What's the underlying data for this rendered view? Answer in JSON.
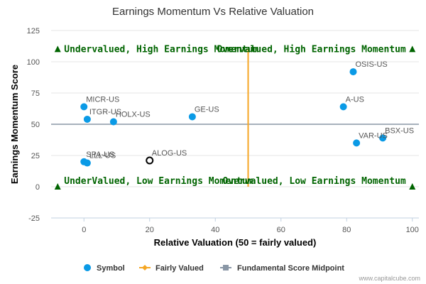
{
  "chart_data": {
    "type": "scatter",
    "title": "Earnings Momentum Vs Relative Valuation",
    "xlabel": "Relative Valuation (50 = fairly valued)",
    "ylabel": "Earnings Momentum Score",
    "xlim": [
      -10,
      102
    ],
    "ylim": [
      -25,
      125
    ],
    "xticks": [
      0,
      20,
      40,
      60,
      80,
      100
    ],
    "yticks": [
      -25,
      0,
      25,
      50,
      75,
      100,
      125
    ],
    "points": [
      {
        "label": "OSIS-US",
        "x": 82,
        "y": 92,
        "highlight": false
      },
      {
        "label": "A-US",
        "x": 79,
        "y": 64,
        "highlight": false
      },
      {
        "label": "BSX-US",
        "x": 91,
        "y": 39,
        "highlight": false
      },
      {
        "label": "VAR-US",
        "x": 83,
        "y": 35,
        "highlight": false
      },
      {
        "label": "MICR-US",
        "x": 0,
        "y": 64,
        "highlight": false
      },
      {
        "label": "ITGR-US",
        "x": 1,
        "y": 54,
        "highlight": false
      },
      {
        "label": "HOLX-US",
        "x": 9,
        "y": 52,
        "highlight": false
      },
      {
        "label": "GE-US",
        "x": 33,
        "y": 56,
        "highlight": false
      },
      {
        "label": "SPA-US",
        "x": 0,
        "y": 20,
        "highlight": false
      },
      {
        "label": "LLL-US",
        "x": 1,
        "y": 19,
        "highlight": false
      },
      {
        "label": "ALOG-US",
        "x": 20,
        "y": 21,
        "highlight": true
      }
    ],
    "fairly_valued_x": 50,
    "midpoint_y": 50,
    "quadrant_labels": [
      {
        "text": "Undervalued, High Earnings Momentum",
        "pos": "top-left"
      },
      {
        "text": "Overvalued, High Earnings Momentum",
        "pos": "top-right"
      },
      {
        "text": "UnderValued, Low Earnings Momentum",
        "pos": "bottom-left"
      },
      {
        "text": "Overvalued, Low Earnings Momentum",
        "pos": "bottom-right"
      }
    ],
    "legend": [
      {
        "name": "Symbol",
        "kind": "dot"
      },
      {
        "name": "Fairly Valued",
        "kind": "diamond-line"
      },
      {
        "name": "Fundamental Score Midpoint",
        "kind": "square-line"
      }
    ],
    "credit": "www.capitalcube.com",
    "colors": {
      "point": "#0a9ae6",
      "highlight_stroke": "#000000",
      "fairly_valued": "#f5a623",
      "midpoint": "#8a97a6",
      "quadrant_text": "#006400",
      "corner_marker": "#006400",
      "grid": "#e6e6e6"
    }
  }
}
